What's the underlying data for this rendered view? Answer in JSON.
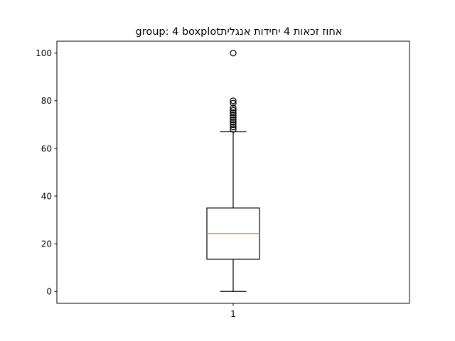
{
  "chart_data": {
    "type": "boxplot",
    "title": "group: 4 boxplotאחוז זכאות 4 יחידות אנגלית",
    "categories": [
      "1"
    ],
    "boxes": [
      {
        "category": "1",
        "whisker_low": 0,
        "q1": 13.5,
        "median": 24.3,
        "q3": 35,
        "whisker_high": 67,
        "outliers": [
          68,
          69,
          70,
          71,
          72,
          73,
          74,
          75,
          76,
          77,
          79,
          80,
          100
        ]
      }
    ],
    "y_ticks": [
      0,
      20,
      40,
      60,
      80,
      100
    ],
    "ylim": [
      -5,
      105
    ],
    "xlabel": "",
    "ylabel": "",
    "grid": false
  },
  "colors": {
    "box": "#000000",
    "median": "#ff7f0e",
    "outlier": "#000000"
  }
}
